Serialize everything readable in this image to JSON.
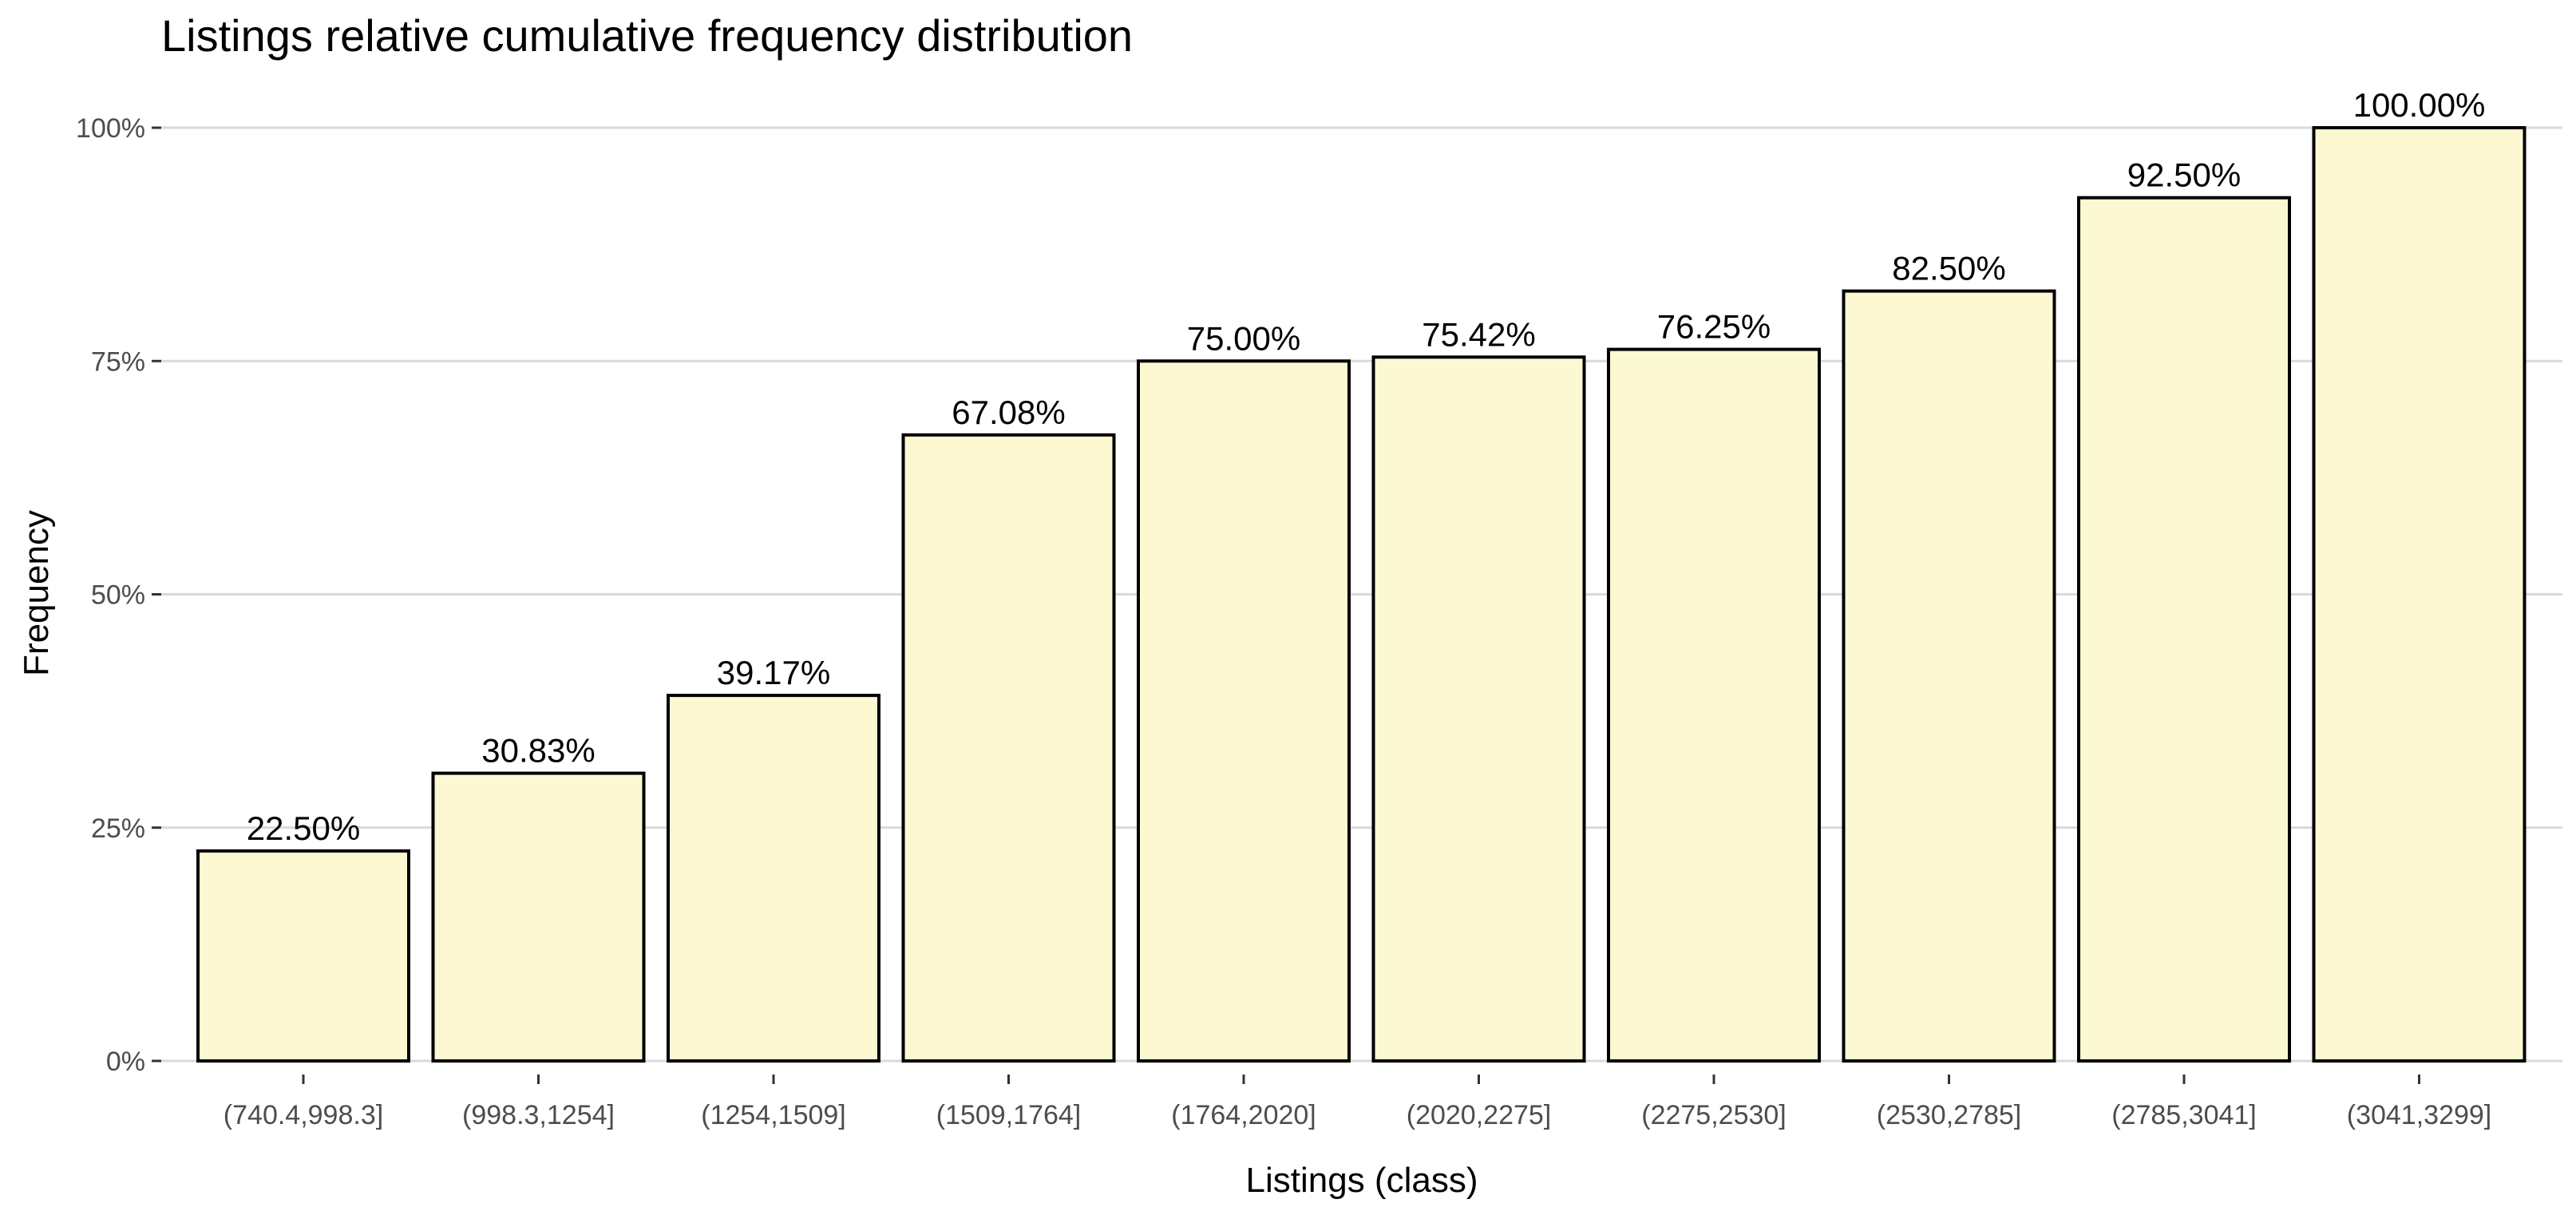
{
  "chart_data": {
    "type": "bar",
    "title": "Listings relative cumulative frequency distribution",
    "xlabel": "Listings (class)",
    "ylabel": "Frequency",
    "categories": [
      "(740.4,998.3]",
      "(998.3,1254]",
      "(1254,1509]",
      "(1509,1764]",
      "(1764,2020]",
      "(2020,2275]",
      "(2275,2530]",
      "(2530,2785]",
      "(2785,3041]",
      "(3041,3299]"
    ],
    "values": [
      22.5,
      30.83,
      39.17,
      67.08,
      75.0,
      75.42,
      76.25,
      82.5,
      92.5,
      100.0
    ],
    "data_labels": [
      "22.50%",
      "30.83%",
      "39.17%",
      "67.08%",
      "75.00%",
      "75.42%",
      "76.25%",
      "82.50%",
      "92.50%",
      "100.00%"
    ],
    "ylim": [
      0,
      100
    ],
    "yticks": [
      0,
      25,
      50,
      75,
      100
    ],
    "ytick_labels": [
      "0%",
      "25%",
      "50%",
      "75%",
      "100%"
    ],
    "grid": "horizontal",
    "legend": "none",
    "colors": {
      "bar_fill": "#fcf8d2",
      "bar_outline": "#000000",
      "grid": "#d9d9d9"
    }
  }
}
